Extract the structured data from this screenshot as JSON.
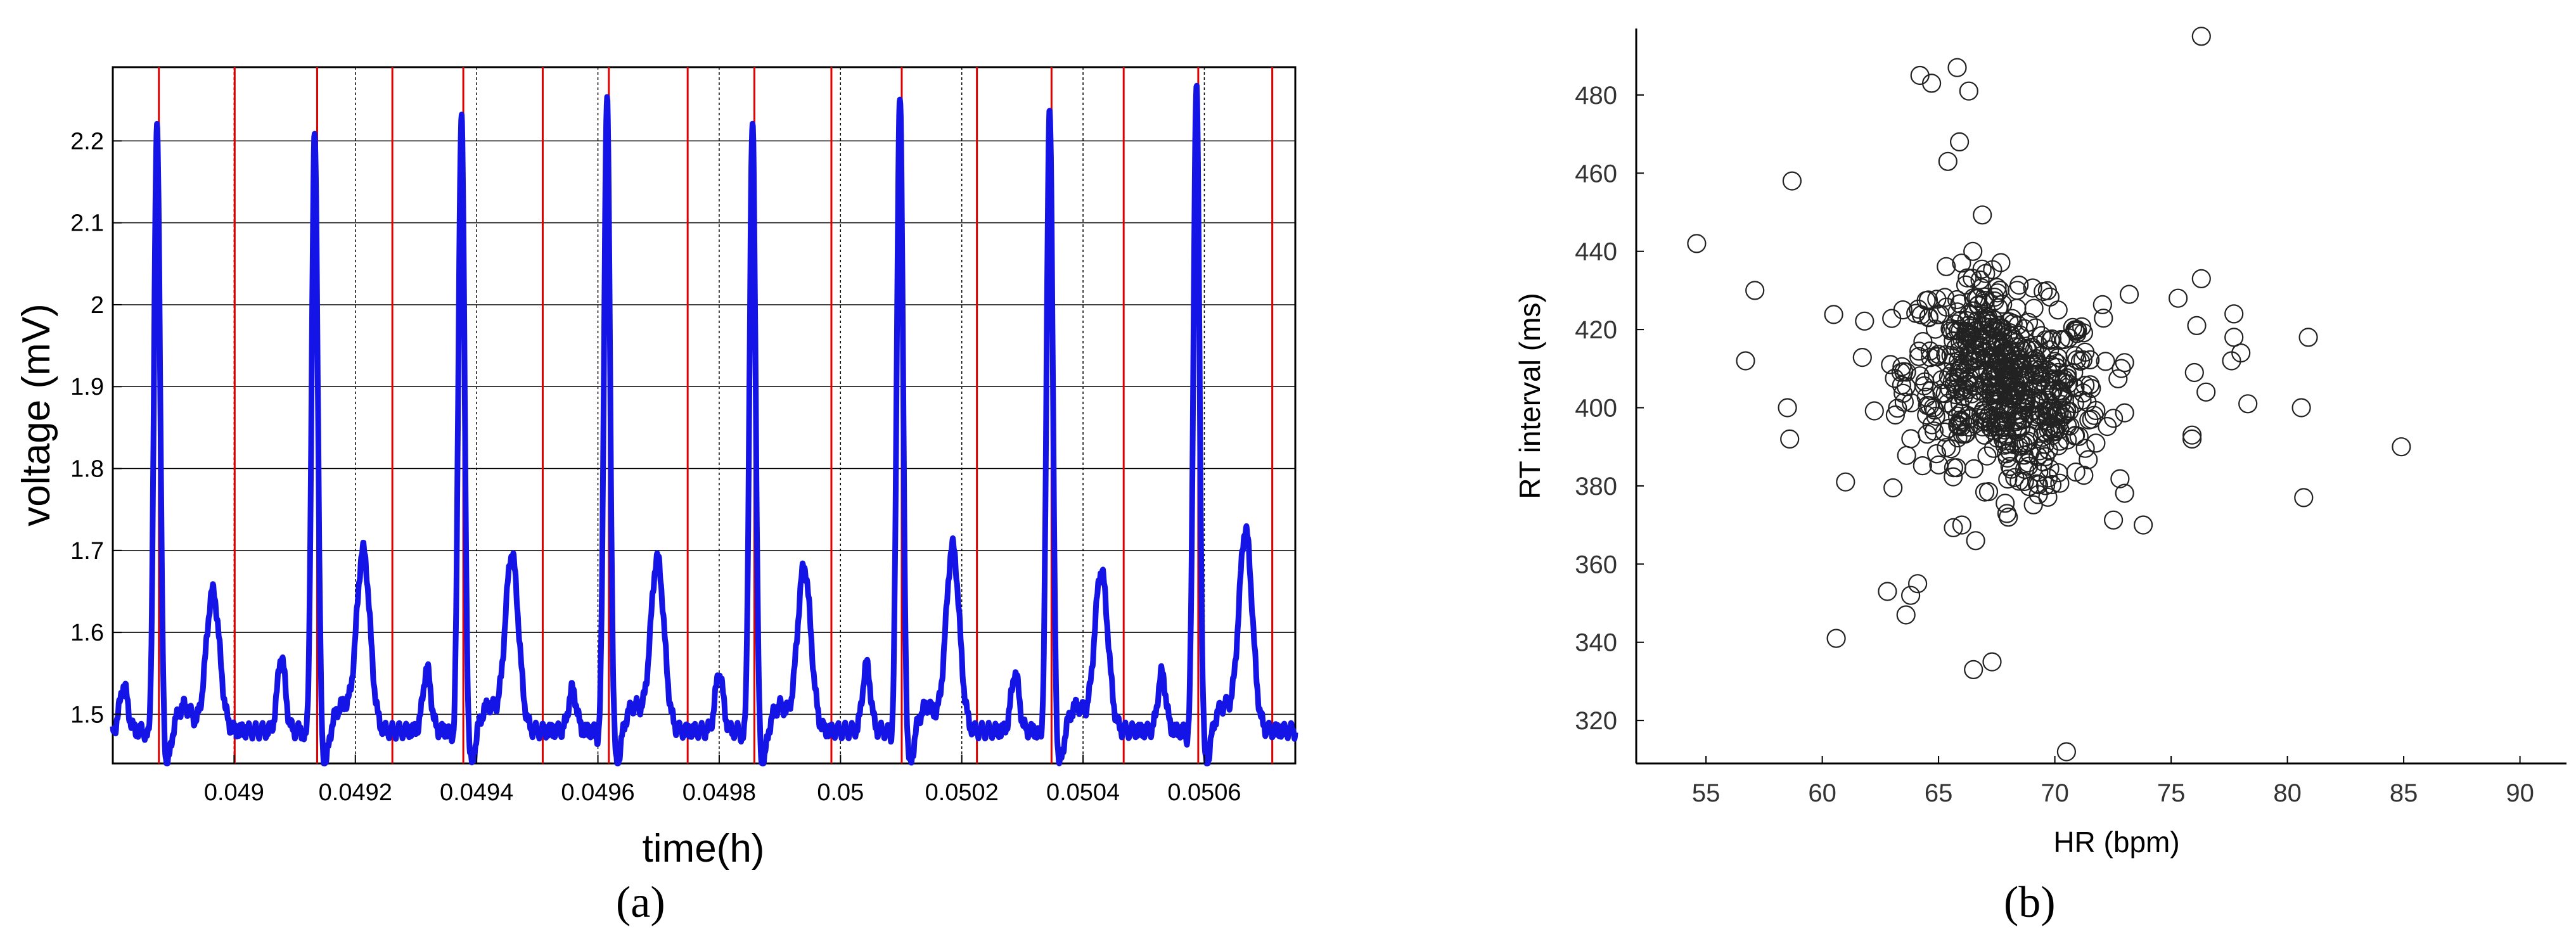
{
  "chart_data": [
    {
      "panel": "(a)",
      "type": "line",
      "xlabel": "time(h)",
      "ylabel": "voltage (mV)",
      "xlim": [
        0.0488,
        0.05075
      ],
      "ylim": [
        1.44,
        2.29
      ],
      "x_ticks": [
        0.049,
        0.0492,
        0.0494,
        0.0496,
        0.0498,
        0.05,
        0.0502,
        0.0504,
        0.0506
      ],
      "x_tick_labels": [
        "0.049",
        "0.0492",
        "0.0494",
        "0.0496",
        "0.0498",
        "0.05",
        "0.0502",
        "0.0504",
        "0.0506"
      ],
      "y_ticks": [
        1.5,
        1.6,
        1.7,
        1.8,
        1.9,
        2.0,
        2.1,
        2.2
      ],
      "y_tick_labels": [
        "1.5",
        "1.6",
        "1.7",
        "1.8",
        "1.9",
        "2",
        "2.1",
        "2.2"
      ],
      "grid": true,
      "line_color": "#1414e6",
      "marker_color": "#e00000",
      "baseline_mV": 1.48,
      "r_peaks": [
        {
          "t": 0.048873,
          "v": 2.2
        },
        {
          "t": 0.049133,
          "v": 2.19
        },
        {
          "t": 0.049375,
          "v": 2.215
        },
        {
          "t": 0.049615,
          "v": 2.23
        },
        {
          "t": 0.049855,
          "v": 2.2
        },
        {
          "t": 0.050098,
          "v": 2.24
        },
        {
          "t": 0.050345,
          "v": 2.225
        },
        {
          "t": 0.050587,
          "v": 2.245
        }
      ],
      "t_waves": [
        {
          "t": 0.048965,
          "v": 1.66
        },
        {
          "t": 0.049213,
          "v": 1.71
        },
        {
          "t": 0.049458,
          "v": 1.705
        },
        {
          "t": 0.049698,
          "v": 1.7
        },
        {
          "t": 0.04994,
          "v": 1.69
        },
        {
          "t": 0.050185,
          "v": 1.715
        },
        {
          "t": 0.05043,
          "v": 1.685
        },
        {
          "t": 0.050668,
          "v": 1.735
        }
      ],
      "p_waves": [
        {
          "t": 0.048818,
          "v": 1.545
        },
        {
          "t": 0.049078,
          "v": 1.58
        },
        {
          "t": 0.049318,
          "v": 1.565
        },
        {
          "t": 0.049558,
          "v": 1.54
        },
        {
          "t": 0.0498,
          "v": 1.56
        },
        {
          "t": 0.050043,
          "v": 1.57
        },
        {
          "t": 0.050288,
          "v": 1.56
        },
        {
          "t": 0.05053,
          "v": 1.56
        }
      ],
      "vertical_markers_t": [
        0.048876,
        0.049001,
        0.049137,
        0.049261,
        0.049378,
        0.049509,
        0.049618,
        0.049748,
        0.049858,
        0.049985,
        0.050101,
        0.050225,
        0.050348,
        0.050467,
        0.05059,
        0.050712
      ]
    },
    {
      "panel": "(b)",
      "type": "scatter",
      "xlabel": "HR (bpm)",
      "ylabel": "RT interval (ms)",
      "xlim": [
        52,
        92
      ],
      "ylim": [
        309,
        497
      ],
      "x_ticks": [
        55,
        60,
        65,
        70,
        75,
        80,
        85,
        90
      ],
      "x_tick_labels": [
        "55",
        "60",
        "65",
        "70",
        "75",
        "80",
        "85",
        "90"
      ],
      "y_ticks": [
        320,
        340,
        360,
        380,
        400,
        420,
        440,
        460,
        480
      ],
      "y_tick_labels": [
        "320",
        "340",
        "360",
        "380",
        "400",
        "420",
        "440",
        "460",
        "480"
      ],
      "grid": false,
      "marker": "open-circle",
      "outliers": [
        [
          54.6,
          442
        ],
        [
          56.7,
          412
        ],
        [
          57.1,
          430
        ],
        [
          58.5,
          400
        ],
        [
          58.6,
          392
        ],
        [
          58.7,
          458
        ],
        [
          60.6,
          341
        ],
        [
          61.0,
          381
        ],
        [
          62.8,
          353
        ],
        [
          63.6,
          347
        ],
        [
          63.8,
          352
        ],
        [
          64.1,
          355
        ],
        [
          64.2,
          485
        ],
        [
          64.7,
          483
        ],
        [
          65.4,
          463
        ],
        [
          65.8,
          487
        ],
        [
          66.3,
          481
        ],
        [
          65.9,
          468
        ],
        [
          66.5,
          333
        ],
        [
          67.3,
          335
        ],
        [
          70.5,
          312
        ],
        [
          73.8,
          370
        ],
        [
          73.2,
          429
        ],
        [
          75.3,
          428
        ],
        [
          75.9,
          393
        ],
        [
          75.9,
          392
        ],
        [
          76.0,
          409
        ],
        [
          76.1,
          421
        ],
        [
          76.3,
          433
        ],
        [
          76.3,
          495
        ],
        [
          76.5,
          404
        ],
        [
          77.6,
          412
        ],
        [
          77.7,
          418
        ],
        [
          77.7,
          424
        ],
        [
          78.0,
          414
        ],
        [
          78.3,
          401
        ],
        [
          80.6,
          400
        ],
        [
          80.7,
          377
        ],
        [
          80.9,
          418
        ],
        [
          84.9,
          390
        ],
        [
          66.0,
          370
        ],
        [
          68.0,
          372
        ]
      ],
      "cluster": {
        "center_hr": 67.8,
        "center_rt": 405,
        "sd_hr": 2.1,
        "sd_rt": 12,
        "count": 620
      }
    }
  ],
  "labels": {
    "a": "(a)",
    "b": "(b)"
  }
}
